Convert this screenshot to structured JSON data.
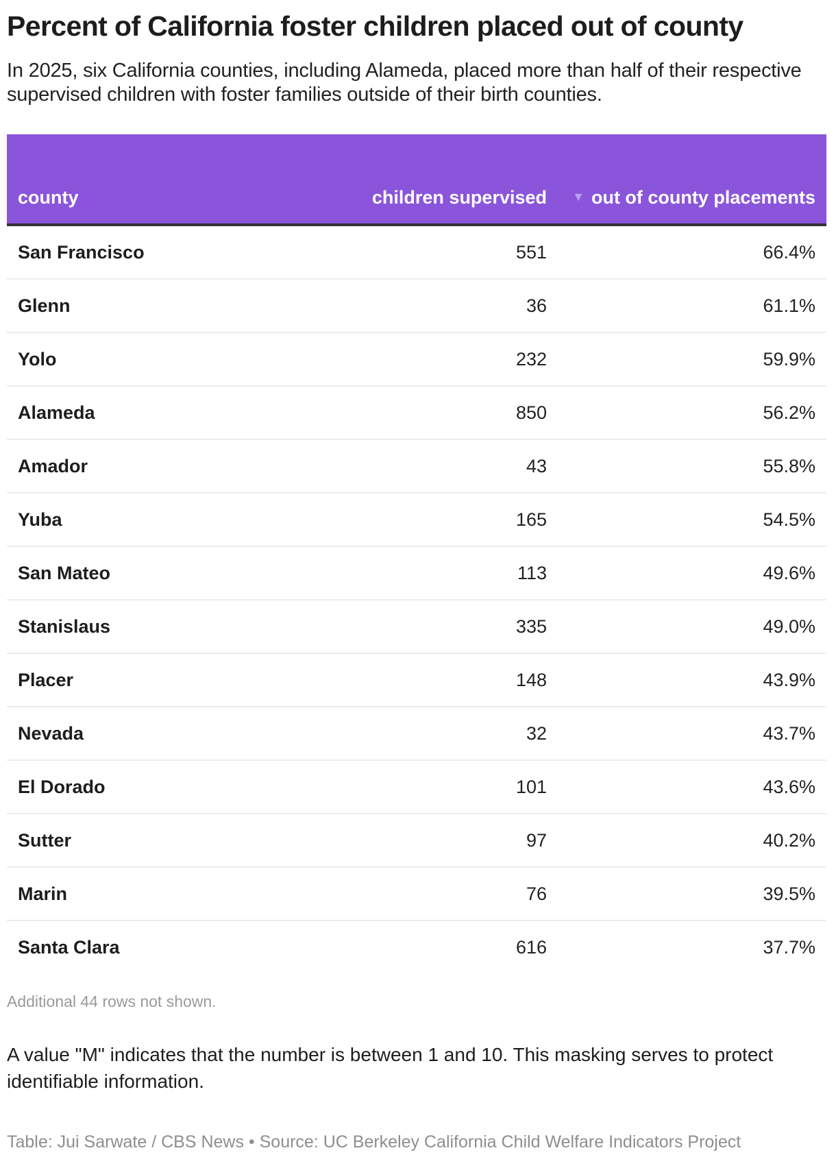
{
  "header": {
    "title": "Percent of California foster children placed out of county",
    "subtitle": "In 2025, six California counties, including Alameda, placed more than half of their respective supervised children with foster families outside of their birth counties."
  },
  "table": {
    "header_color": "#8a55db",
    "columns": [
      {
        "key": "county",
        "label": "county"
      },
      {
        "key": "children_supervised",
        "label": "children supervised"
      },
      {
        "key": "out_of_county",
        "label": "out of county placements",
        "sort_icon": "sort-descending-icon",
        "sort_glyph": "▼"
      }
    ],
    "rows": [
      {
        "county": "San Francisco",
        "children_supervised": "551",
        "out_of_county": "66.4%"
      },
      {
        "county": "Glenn",
        "children_supervised": "36",
        "out_of_county": "61.1%"
      },
      {
        "county": "Yolo",
        "children_supervised": "232",
        "out_of_county": "59.9%"
      },
      {
        "county": "Alameda",
        "children_supervised": "850",
        "out_of_county": "56.2%"
      },
      {
        "county": "Amador",
        "children_supervised": "43",
        "out_of_county": "55.8%"
      },
      {
        "county": "Yuba",
        "children_supervised": "165",
        "out_of_county": "54.5%"
      },
      {
        "county": "San Mateo",
        "children_supervised": "113",
        "out_of_county": "49.6%"
      },
      {
        "county": "Stanislaus",
        "children_supervised": "335",
        "out_of_county": "49.0%"
      },
      {
        "county": "Placer",
        "children_supervised": "148",
        "out_of_county": "43.9%"
      },
      {
        "county": "Nevada",
        "children_supervised": "32",
        "out_of_county": "43.7%"
      },
      {
        "county": "El Dorado",
        "children_supervised": "101",
        "out_of_county": "43.6%"
      },
      {
        "county": "Sutter",
        "children_supervised": "97",
        "out_of_county": "40.2%"
      },
      {
        "county": "Marin",
        "children_supervised": "76",
        "out_of_county": "39.5%"
      },
      {
        "county": "Santa Clara",
        "children_supervised": "616",
        "out_of_county": "37.7%"
      }
    ],
    "more_rows_text": "Additional 44 rows not shown."
  },
  "notes": {
    "masking_note": "A value \"M\" indicates that the number is between 1 and 10. This masking serves to protect identifiable information.",
    "source": "Table: Jui Sarwate / CBS News • Source: UC Berkeley California Child Welfare Indicators Project"
  }
}
